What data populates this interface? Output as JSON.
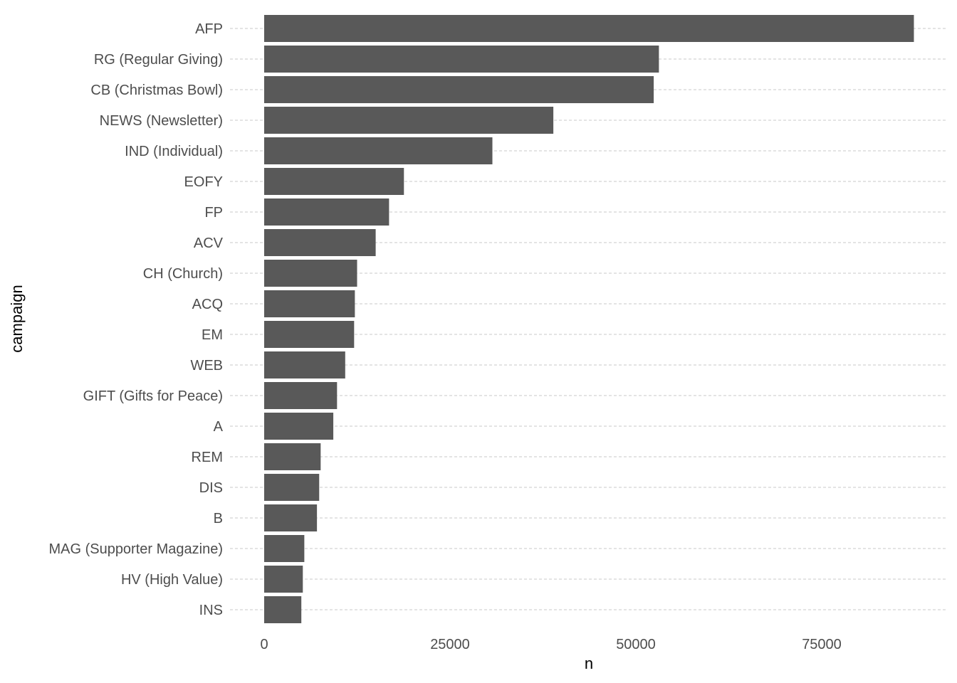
{
  "chart_data": {
    "type": "bar",
    "orientation": "horizontal",
    "xlabel": "n",
    "ylabel": "campaign",
    "xlim": [
      0,
      87500
    ],
    "xticks": [
      0,
      25000,
      50000,
      75000
    ],
    "xtick_labels": [
      "0",
      "25000",
      "50000",
      "75000"
    ],
    "grid": "dashed horizontal gridlines",
    "bar_color": "#595959",
    "categories": [
      "AFP",
      "RG (Regular Giving)",
      "CB (Christmas Bowl)",
      "NEWS (Newsletter)",
      "IND (Individual)",
      "EOFY",
      "FP",
      "ACV",
      "CH (Church)",
      "ACQ",
      "EM",
      "WEB",
      "GIFT (Gifts for Peace)",
      "A",
      "REM",
      "DIS",
      "B",
      "MAG (Supporter Magazine)",
      "HV (High Value)",
      "INS"
    ],
    "values": [
      87400,
      53100,
      52400,
      38900,
      30700,
      18800,
      16800,
      15000,
      12500,
      12200,
      12100,
      10900,
      9800,
      9300,
      7600,
      7400,
      7100,
      5400,
      5200,
      5000
    ]
  }
}
